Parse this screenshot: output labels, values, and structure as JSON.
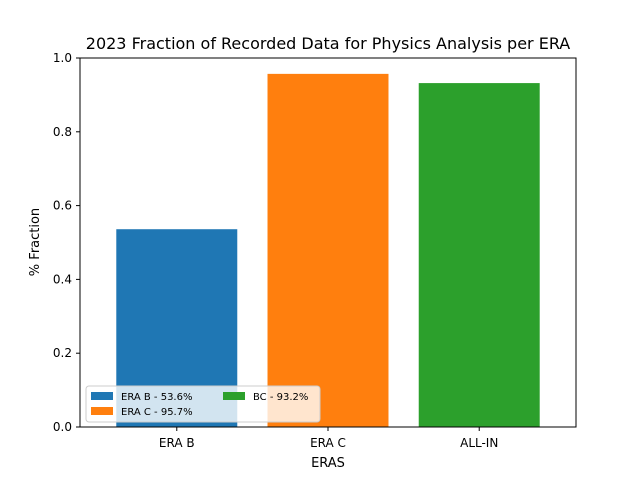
{
  "chart_data": {
    "type": "bar",
    "title": "2023 Fraction of Recorded Data for Physics Analysis per ERA",
    "xlabel": "ERAS",
    "ylabel": "% Fraction",
    "ylim": [
      0,
      1.0
    ],
    "yticks": [
      "0.0",
      "0.2",
      "0.4",
      "0.6",
      "0.8",
      "1.0"
    ],
    "categories": [
      "ERA B",
      "ERA C",
      "ALL-IN"
    ],
    "values": [
      0.536,
      0.957,
      0.932
    ],
    "colors": [
      "#1f77b4",
      "#ff7f0e",
      "#2ca02c"
    ],
    "legend": {
      "placement": "lower-left",
      "columns": 2,
      "entries": [
        "ERA B - 53.6%",
        "ERA C - 95.7%",
        "BC - 93.2%"
      ]
    },
    "grid": false
  }
}
